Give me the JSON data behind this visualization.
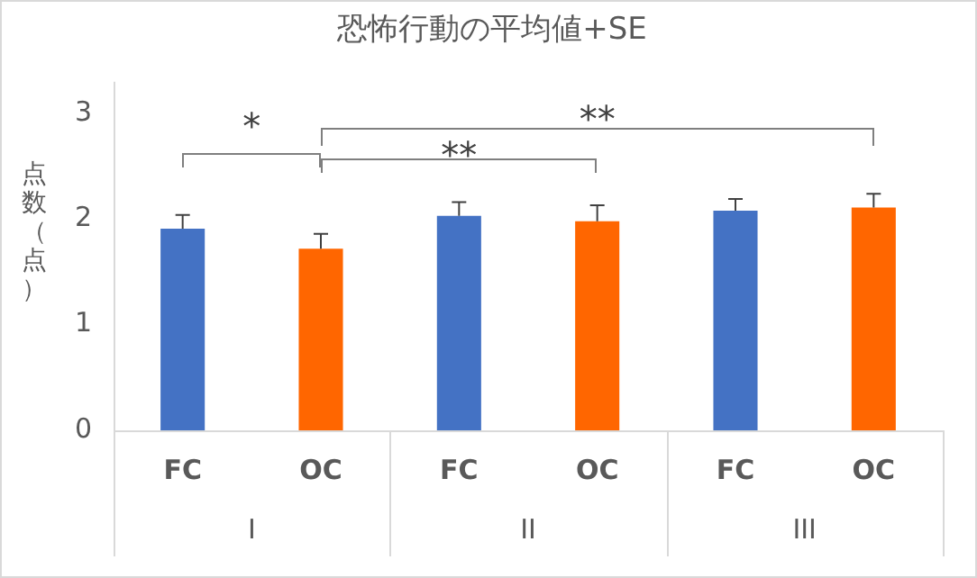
{
  "chart_data": {
    "type": "bar",
    "title": "恐怖行動の平均値+SE",
    "ylabel": "点数（点）",
    "categories": [
      "FC",
      "OC",
      "FC",
      "OC",
      "FC",
      "OC"
    ],
    "values": [
      1.91,
      1.72,
      2.03,
      1.98,
      2.08,
      2.11
    ],
    "errors": [
      0.13,
      0.14,
      0.13,
      0.15,
      0.11,
      0.13
    ],
    "colors": [
      "#4472c4",
      "#ff6600",
      "#4472c4",
      "#ff6600",
      "#4472c4",
      "#ff6600"
    ],
    "ylim": [
      0,
      3.3
    ],
    "yticks": [
      0,
      1,
      2,
      3
    ],
    "grid": false,
    "legend": false,
    "annotations": [
      "*",
      "**",
      "**",
      "I",
      "II",
      "III"
    ]
  }
}
